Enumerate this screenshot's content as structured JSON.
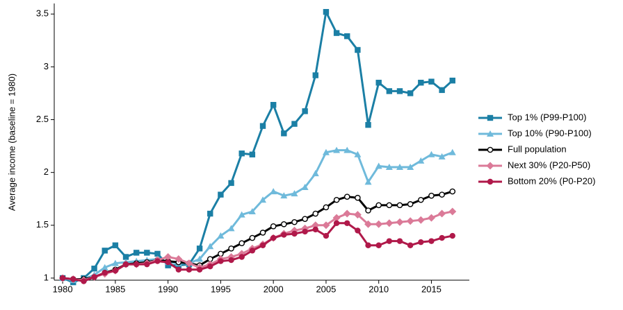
{
  "chart_data": {
    "type": "line",
    "y_label": "Average income (baseline = 1980)",
    "x": [
      1980,
      1981,
      1982,
      1983,
      1984,
      1985,
      1986,
      1987,
      1988,
      1989,
      1990,
      1991,
      1992,
      1993,
      1994,
      1995,
      1996,
      1997,
      1998,
      1999,
      2000,
      2001,
      2002,
      2003,
      2004,
      2005,
      2006,
      2007,
      2008,
      2009,
      2010,
      2011,
      2012,
      2013,
      2014,
      2015,
      2016,
      2017
    ],
    "xlim": [
      1979.2,
      2018.6
    ],
    "xticks": [
      1980,
      1985,
      1990,
      1995,
      2000,
      2005,
      2010,
      2015
    ],
    "ylim": [
      0.98,
      3.6
    ],
    "yticks": [
      1,
      1.5,
      2,
      2.5,
      3,
      3.5
    ],
    "legend": "right",
    "series": [
      {
        "name": "Top 1% (P99-P100)",
        "color": "#1b7fa5",
        "marker": "square",
        "values": [
          1.0,
          0.96,
          1.0,
          1.09,
          1.26,
          1.31,
          1.2,
          1.24,
          1.24,
          1.23,
          1.12,
          1.12,
          1.13,
          1.28,
          1.61,
          1.79,
          1.9,
          2.18,
          2.17,
          2.44,
          2.64,
          2.37,
          2.46,
          2.58,
          2.92,
          3.52,
          3.32,
          3.29,
          3.16,
          2.45,
          2.85,
          2.77,
          2.77,
          2.75,
          2.85,
          2.86,
          2.78,
          2.87
        ]
      },
      {
        "name": "Top 10% (P90-P100)",
        "color": "#6fbadb",
        "marker": "triangle",
        "values": [
          1.0,
          0.98,
          0.99,
          1.03,
          1.1,
          1.14,
          1.15,
          1.16,
          1.17,
          1.18,
          1.15,
          1.14,
          1.14,
          1.18,
          1.3,
          1.4,
          1.47,
          1.6,
          1.63,
          1.74,
          1.82,
          1.78,
          1.8,
          1.86,
          1.99,
          2.19,
          2.21,
          2.21,
          2.17,
          1.91,
          2.06,
          2.05,
          2.05,
          2.05,
          2.11,
          2.17,
          2.15,
          2.19
        ]
      },
      {
        "name": "Full population",
        "color": "#000000",
        "marker": "open-circle",
        "values": [
          1.0,
          0.99,
          0.99,
          1.01,
          1.05,
          1.08,
          1.13,
          1.14,
          1.15,
          1.17,
          1.16,
          1.15,
          1.14,
          1.12,
          1.18,
          1.23,
          1.28,
          1.33,
          1.38,
          1.43,
          1.49,
          1.51,
          1.53,
          1.56,
          1.61,
          1.67,
          1.74,
          1.77,
          1.76,
          1.64,
          1.69,
          1.69,
          1.69,
          1.7,
          1.74,
          1.78,
          1.79,
          1.82
        ]
      },
      {
        "name": "Next 30% (P20-P50)",
        "color": "#db7a98",
        "marker": "diamond",
        "values": [
          1.0,
          0.99,
          0.98,
          1.01,
          1.04,
          1.07,
          1.13,
          1.13,
          1.14,
          1.17,
          1.2,
          1.18,
          1.14,
          1.1,
          1.13,
          1.18,
          1.2,
          1.23,
          1.28,
          1.32,
          1.38,
          1.42,
          1.45,
          1.47,
          1.5,
          1.5,
          1.57,
          1.61,
          1.6,
          1.51,
          1.51,
          1.52,
          1.53,
          1.54,
          1.55,
          1.57,
          1.61,
          1.63
        ]
      },
      {
        "name": "Bottom 20% (P0-P20)",
        "color": "#b0194a",
        "marker": "circle",
        "values": [
          1.0,
          0.99,
          0.97,
          1.01,
          1.05,
          1.07,
          1.13,
          1.13,
          1.13,
          1.16,
          1.15,
          1.08,
          1.08,
          1.08,
          1.11,
          1.16,
          1.17,
          1.2,
          1.26,
          1.31,
          1.38,
          1.41,
          1.42,
          1.44,
          1.46,
          1.4,
          1.52,
          1.52,
          1.45,
          1.31,
          1.31,
          1.35,
          1.35,
          1.31,
          1.34,
          1.35,
          1.38,
          1.4
        ]
      }
    ]
  }
}
